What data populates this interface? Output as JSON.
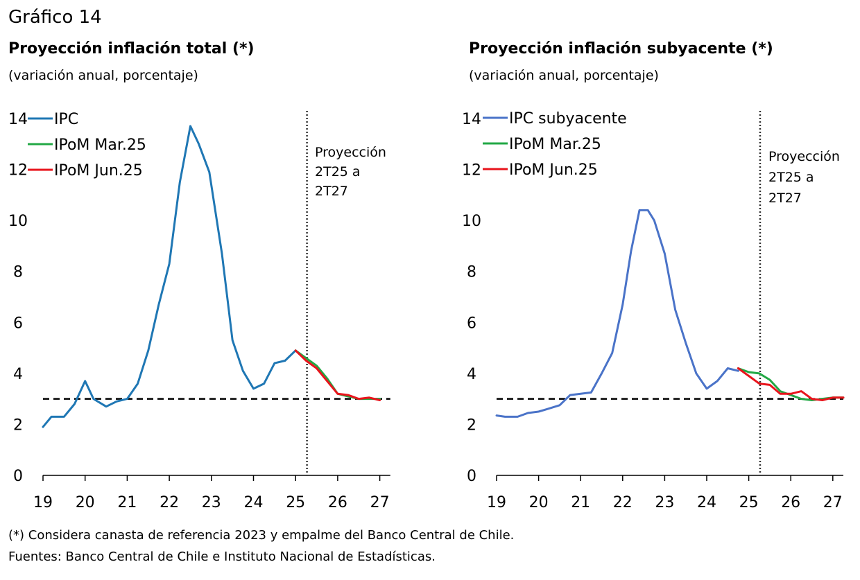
{
  "figure_label": "Gráfico 14",
  "footnotes": {
    "note": "(*) Considera canasta de referencia 2023 y empalme del Banco Central de Chile.",
    "sources": "Fuentes: Banco Central de Chile e Instituto Nacional de Estadísticas."
  },
  "colors": {
    "ipc": "#1f77b4",
    "ipc_sub": "#4a73c8",
    "mar": "#22a845",
    "jun": "#e8141c",
    "target": "#000000",
    "axis": "#000000"
  },
  "chart_data": [
    {
      "type": "line",
      "title": "Proyección inflación total (*)",
      "subtitle": "(variación anual, porcentaje)",
      "xlim": [
        19,
        27.25
      ],
      "ylim": [
        0,
        14
      ],
      "xticks": [
        "19",
        "20",
        "21",
        "22",
        "23",
        "24",
        "25",
        "26",
        "27"
      ],
      "yticks": [
        "0",
        "2",
        "4",
        "6",
        "8",
        "10",
        "12",
        "14"
      ],
      "target_line": 3,
      "projection_start": 25.27,
      "annotation": [
        "Proyección",
        "2T25 a",
        "2T27"
      ],
      "legend_position": "top-left",
      "series": [
        {
          "name": "IPC",
          "color_key": "ipc",
          "x": [
            19.0,
            19.2,
            19.5,
            19.75,
            20.0,
            20.2,
            20.5,
            20.75,
            21.0,
            21.25,
            21.5,
            21.75,
            22.0,
            22.25,
            22.5,
            22.7,
            22.95,
            23.25,
            23.5,
            23.75,
            24.0,
            24.25,
            24.5,
            24.75,
            25.0,
            25.2
          ],
          "y": [
            1.9,
            2.3,
            2.3,
            2.8,
            3.7,
            3.0,
            2.7,
            2.9,
            3.0,
            3.6,
            4.9,
            6.7,
            8.3,
            11.5,
            13.7,
            13.0,
            11.9,
            8.7,
            5.3,
            4.1,
            3.4,
            3.6,
            4.4,
            4.5,
            4.9,
            4.6
          ]
        },
        {
          "name": "IPoM Mar.25",
          "color_key": "mar",
          "x": [
            25.0,
            25.25,
            25.5,
            25.75,
            26.0,
            26.25,
            26.5,
            26.75,
            27.0
          ],
          "y": [
            4.9,
            4.6,
            4.3,
            3.8,
            3.2,
            3.1,
            3.0,
            3.0,
            3.0
          ]
        },
        {
          "name": "IPoM Jun.25",
          "color_key": "jun",
          "x": [
            25.0,
            25.25,
            25.5,
            25.75,
            26.0,
            26.25,
            26.5,
            26.75,
            27.0
          ],
          "y": [
            4.9,
            4.5,
            4.2,
            3.7,
            3.2,
            3.15,
            3.0,
            3.05,
            2.95
          ]
        }
      ]
    },
    {
      "type": "line",
      "title": "Proyección inflación subyacente (*)",
      "subtitle": "(variación anual, porcentaje)",
      "xlim": [
        19,
        27.25
      ],
      "ylim": [
        0,
        14
      ],
      "xticks": [
        "19",
        "20",
        "21",
        "22",
        "23",
        "24",
        "25",
        "26",
        "27"
      ],
      "yticks": [
        "0",
        "2",
        "4",
        "6",
        "8",
        "10",
        "12",
        "14"
      ],
      "target_line": 3,
      "projection_start": 25.27,
      "annotation": [
        "Proyección",
        "2T25 a",
        "2T27"
      ],
      "legend_position": "top-left",
      "series": [
        {
          "name": "IPC subyacente",
          "color_key": "ipc_sub",
          "x": [
            19.0,
            19.2,
            19.5,
            19.75,
            20.0,
            20.2,
            20.5,
            20.75,
            21.0,
            21.25,
            21.5,
            21.75,
            22.0,
            22.2,
            22.4,
            22.6,
            22.75,
            23.0,
            23.25,
            23.5,
            23.75,
            24.0,
            24.25,
            24.5,
            24.75
          ],
          "y": [
            2.35,
            2.3,
            2.3,
            2.45,
            2.5,
            2.6,
            2.75,
            3.15,
            3.2,
            3.25,
            4.0,
            4.8,
            6.7,
            8.8,
            10.4,
            10.4,
            10.0,
            8.7,
            6.5,
            5.2,
            4.0,
            3.4,
            3.7,
            4.2,
            4.1
          ]
        },
        {
          "name": "IPoM Mar.25",
          "color_key": "mar",
          "x": [
            24.75,
            25.0,
            25.25,
            25.5,
            25.75,
            26.0,
            26.25,
            26.5,
            26.75,
            27.0,
            27.25
          ],
          "y": [
            4.2,
            4.05,
            4.0,
            3.75,
            3.3,
            3.15,
            3.0,
            2.95,
            3.0,
            3.05,
            3.05
          ]
        },
        {
          "name": "IPoM Jun.25",
          "color_key": "jun",
          "x": [
            24.75,
            25.0,
            25.25,
            25.5,
            25.75,
            26.0,
            26.25,
            26.5,
            26.75,
            27.0,
            27.25
          ],
          "y": [
            4.2,
            3.9,
            3.6,
            3.55,
            3.2,
            3.2,
            3.3,
            3.0,
            2.95,
            3.05,
            3.05
          ]
        }
      ]
    }
  ]
}
